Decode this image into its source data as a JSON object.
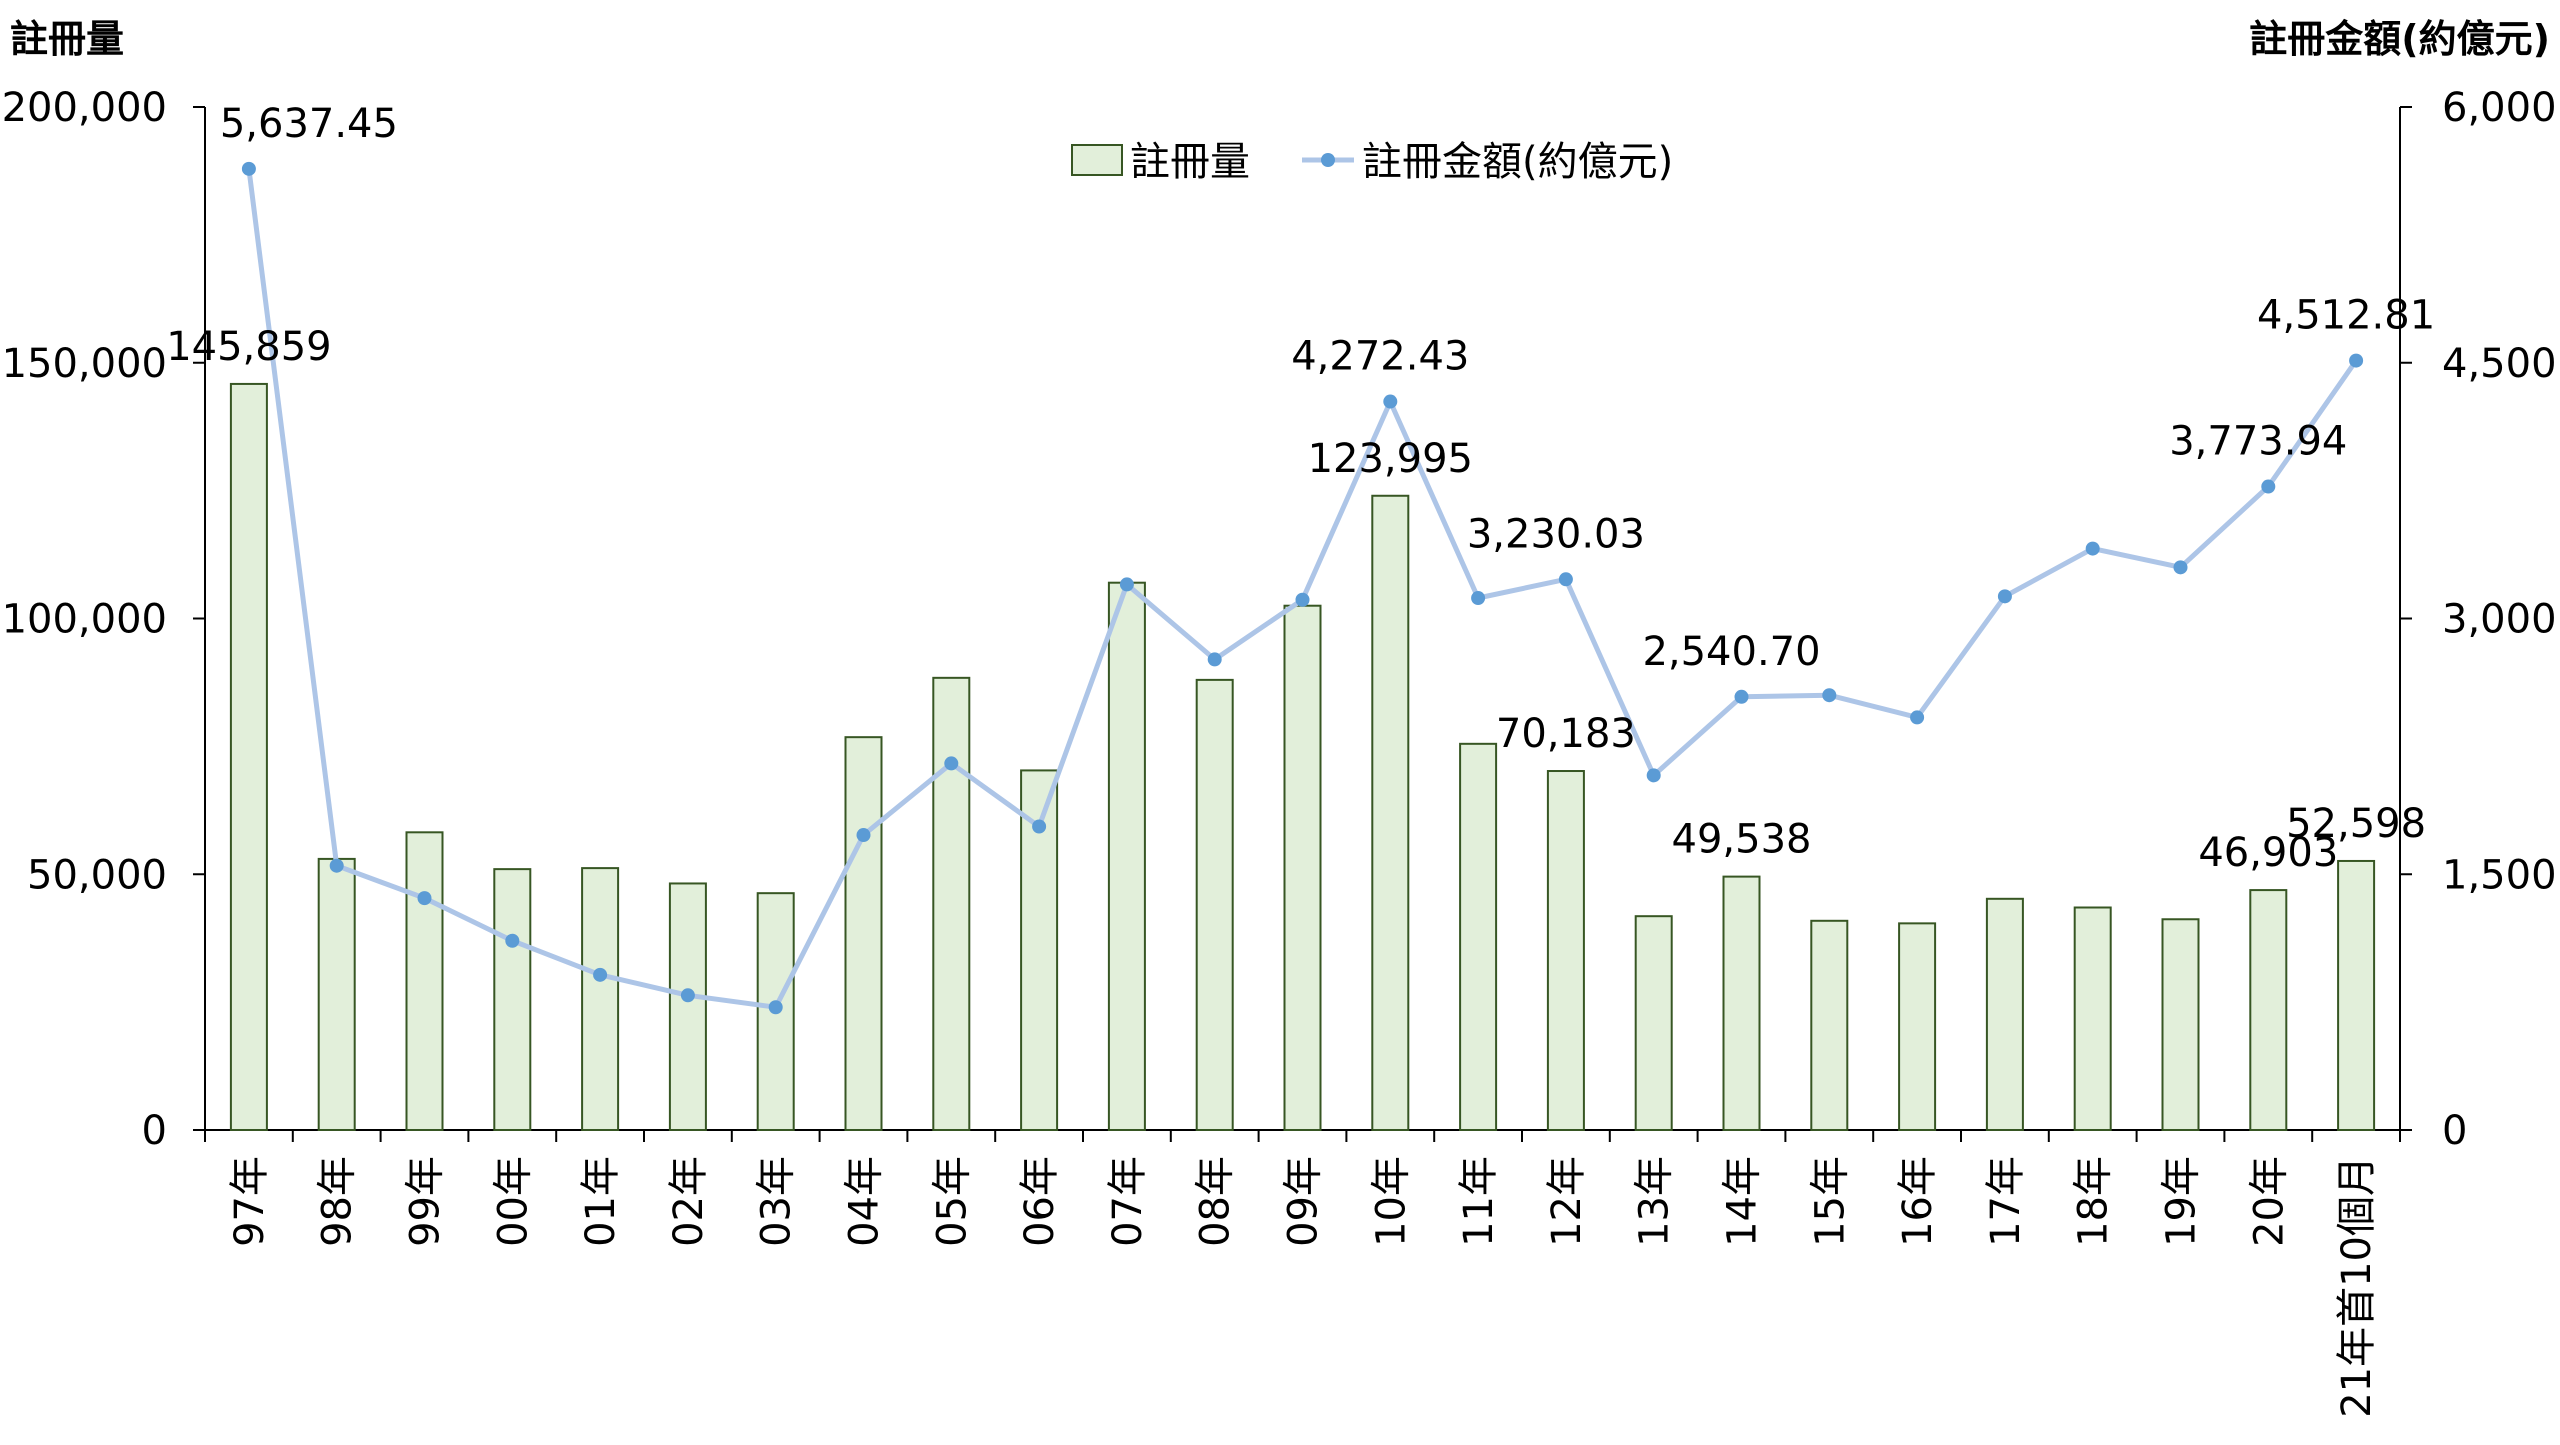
{
  "chart_data": {
    "type": "bar",
    "combo": "bar-line-dual-axis",
    "categories": [
      "97年",
      "98年",
      "99年",
      "00年",
      "01年",
      "02年",
      "03年",
      "04年",
      "05年",
      "06年",
      "07年",
      "08年",
      "09年",
      "10年",
      "11年",
      "12年",
      "13年",
      "14年",
      "15年",
      "16年",
      "17年",
      "18年",
      "19年",
      "20年",
      "21年首10個月"
    ],
    "series": [
      {
        "name": "註冊量",
        "type": "bar",
        "axis": "left",
        "color": "#e2efda",
        "border_color": "#375623",
        "values": [
          145859,
          53000,
          58200,
          51000,
          51200,
          48200,
          46300,
          76800,
          88400,
          70300,
          107000,
          88000,
          102500,
          123995,
          75500,
          70183,
          41800,
          49538,
          40900,
          40400,
          45200,
          43500,
          41200,
          46903,
          52598
        ],
        "labels": {
          "0": "145,859",
          "13": "123,995",
          "15": "70,183",
          "17": "49,538",
          "23": "46,903",
          "24": "52,598"
        }
      },
      {
        "name": "註冊金額(約億元)",
        "type": "line",
        "axis": "right",
        "color": "#adc5e7",
        "marker_color": "#5b9bd5",
        "values": [
          5637.45,
          1550,
          1360,
          1110,
          910,
          790,
          720,
          1730,
          2150,
          1780,
          3200,
          2760,
          3110,
          4272.43,
          3120,
          3230.03,
          2080,
          2540.7,
          2550,
          2420,
          3130,
          3410,
          3300,
          3773.94,
          4512.81
        ],
        "labels": {
          "0": "5,637.45",
          "13": "4,272.43",
          "15": "3,230.03",
          "17": "2,540.70",
          "23": "3,773.94",
          "24": "4,512.81"
        }
      }
    ],
    "y_left": {
      "title": "註冊量",
      "min": 0,
      "max": 200000,
      "ticks": [
        "0",
        "50,000",
        "100,000",
        "150,000",
        "200,000"
      ]
    },
    "y_right": {
      "title": "註冊金額(約億元)",
      "min": 0,
      "max": 6000,
      "ticks": [
        "0",
        "1,500",
        "3,000",
        "4,500",
        "6,000"
      ]
    },
    "grid": false,
    "legend_position": "top-center"
  }
}
